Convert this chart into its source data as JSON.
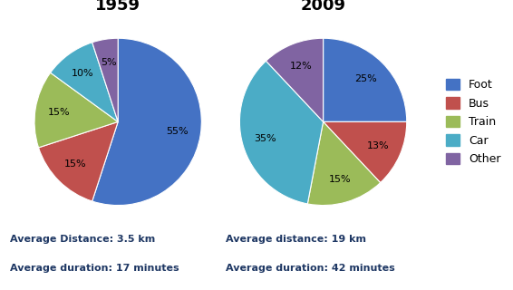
{
  "title_1959": "1959",
  "title_2009": "2009",
  "categories": [
    "Foot",
    "Bus",
    "Train",
    "Car",
    "Other"
  ],
  "colors": [
    "#4472C4",
    "#C0504D",
    "#9BBB59",
    "#4BACC6",
    "#8064A2"
  ],
  "values_1959": [
    55,
    15,
    15,
    10,
    5
  ],
  "values_2009": [
    25,
    13,
    15,
    35,
    12
  ],
  "avg_distance_1959": "Average Distance: 3.5 km",
  "avg_duration_1959": "Average duration: 17 minutes",
  "avg_distance_2009": "Average distance: 19 km",
  "avg_duration_2009": "Average duration: 42 minutes",
  "startangle_1959": 90,
  "startangle_2009": 90,
  "title_fontsize": 13,
  "label_fontsize": 8,
  "legend_fontsize": 9,
  "annotation_fontsize": 8,
  "text_color": "#1F3864"
}
